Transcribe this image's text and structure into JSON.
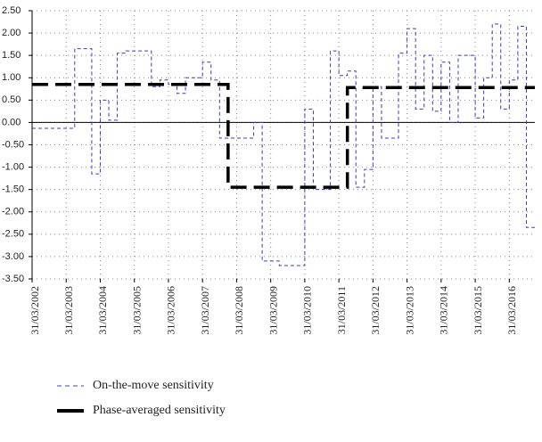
{
  "chart_data": {
    "type": "step",
    "categories": [
      "31/03/2002",
      null,
      null,
      null,
      "31/03/2003",
      null,
      null,
      null,
      "31/03/2004",
      null,
      null,
      null,
      "31/03/2005",
      null,
      null,
      null,
      "31/03/2006",
      null,
      null,
      null,
      "31/03/2007",
      null,
      null,
      null,
      "31/03/2008",
      null,
      null,
      null,
      "31/03/2009",
      null,
      null,
      null,
      "31/03/2010",
      null,
      null,
      null,
      "31/03/2011",
      null,
      null,
      null,
      "31/03/2012",
      null,
      null,
      null,
      "31/03/2013",
      null,
      null,
      null,
      "31/03/2014",
      null,
      null,
      null,
      "31/03/2015",
      null,
      null,
      null,
      "31/03/2016",
      null,
      null
    ],
    "series": [
      {
        "name": "On-the-move sensitivity",
        "color": "#3b3bc4",
        "style": "dashed",
        "values": [
          -0.13,
          -0.13,
          -0.13,
          -0.13,
          -0.13,
          1.65,
          1.65,
          -1.15,
          0.5,
          0.05,
          1.55,
          1.6,
          1.6,
          1.6,
          0.8,
          0.95,
          0.85,
          0.65,
          1.0,
          1.0,
          1.35,
          0.95,
          -0.35,
          -0.35,
          -0.35,
          -0.35,
          0.0,
          -3.1,
          -3.1,
          -3.2,
          -3.2,
          -3.2,
          0.3,
          -1.5,
          -1.5,
          1.6,
          1.05,
          1.15,
          -1.45,
          -1.05,
          0.8,
          -0.35,
          -0.35,
          1.55,
          2.1,
          0.3,
          1.5,
          0.25,
          1.35,
          0.0,
          1.5,
          1.5,
          0.1,
          1.0,
          2.2,
          0.3,
          0.95,
          2.15,
          -2.35
        ]
      },
      {
        "name": "Phase-averaged sensitivity",
        "color": "#000000",
        "style": "bold-dashed",
        "values": [
          0.85,
          0.85,
          0.85,
          0.85,
          0.85,
          0.85,
          0.85,
          0.85,
          0.85,
          0.85,
          0.85,
          0.85,
          0.85,
          0.85,
          0.85,
          0.85,
          0.85,
          0.85,
          0.85,
          0.85,
          0.85,
          0.85,
          0.85,
          -1.45,
          -1.45,
          -1.45,
          -1.45,
          -1.45,
          -1.45,
          -1.45,
          -1.45,
          -1.45,
          -1.45,
          -1.45,
          -1.45,
          -1.45,
          -1.45,
          0.78,
          0.78,
          0.78,
          0.78,
          0.78,
          0.78,
          0.78,
          0.78,
          0.78,
          0.78,
          0.78,
          0.78,
          0.78,
          0.78,
          0.78,
          0.78,
          0.78,
          0.78,
          0.78,
          0.78,
          0.78,
          0.78
        ]
      }
    ],
    "ylim": [
      -3.5,
      2.5
    ],
    "yticks": [
      {
        "value": -3.5,
        "label": "-3.50"
      },
      {
        "value": -3,
        "label": "-3.00"
      },
      {
        "value": -2.5,
        "label": "-2.50"
      },
      {
        "value": -2,
        "label": "-2.00"
      },
      {
        "value": -1.5,
        "label": "-1.50"
      },
      {
        "value": -1,
        "label": "-1.00"
      },
      {
        "value": -0.5,
        "label": "-0.50"
      },
      {
        "value": 0,
        "label": "0.00"
      },
      {
        "value": 0.5,
        "label": "0.50"
      },
      {
        "value": 1,
        "label": "1.00"
      },
      {
        "value": 1.5,
        "label": "1.50"
      },
      {
        "value": 2,
        "label": "2.00"
      },
      {
        "value": 2.5,
        "label": "2.50"
      }
    ],
    "grid": true,
    "legend": "bottom"
  }
}
